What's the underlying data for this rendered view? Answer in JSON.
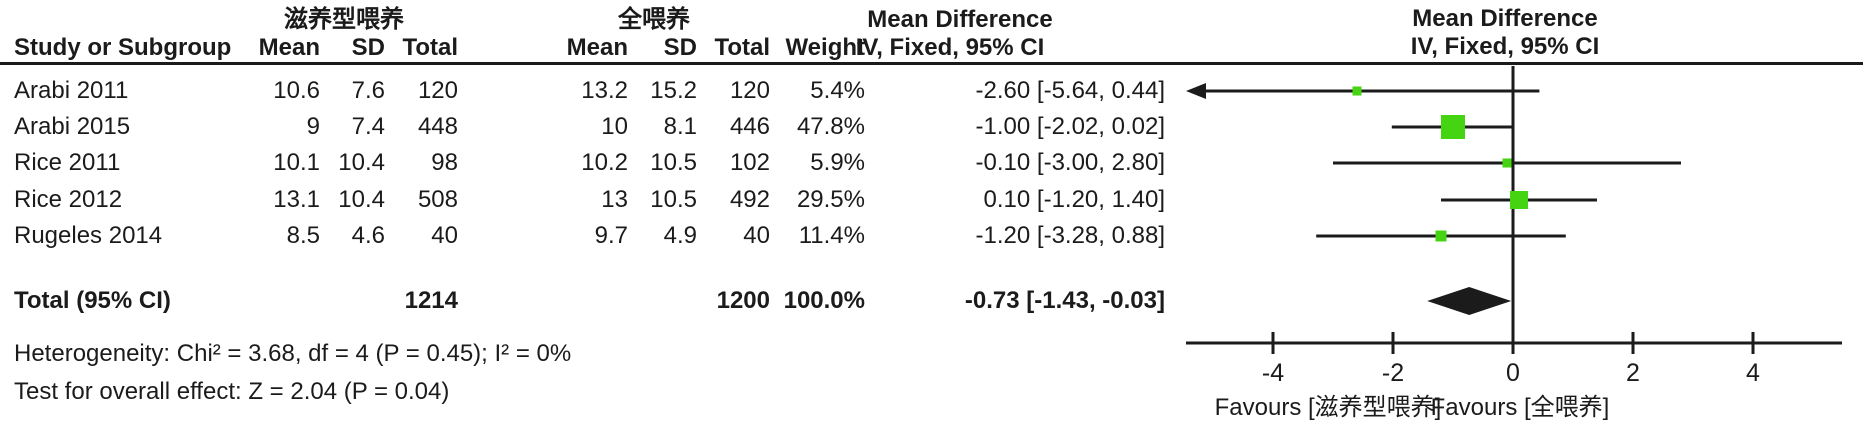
{
  "table": {
    "group1_label": "滋养型喂养",
    "group2_label": "全喂养",
    "md_header": "Mean Difference",
    "col_headers": {
      "study": "Study or Subgroup",
      "mean": "Mean",
      "sd": "SD",
      "total": "Total",
      "weight": "Weight",
      "ci": "IV, Fixed, 95% CI"
    },
    "rows": [
      {
        "study": "Arabi 2011",
        "mean1": "10.6",
        "sd1": "7.6",
        "total1": "120",
        "mean2": "13.2",
        "sd2": "15.2",
        "total2": "120",
        "weight": "5.4%",
        "ci": "-2.60 [-5.64, 0.44]"
      },
      {
        "study": "Arabi 2015",
        "mean1": "9",
        "sd1": "7.4",
        "total1": "448",
        "mean2": "10",
        "sd2": "8.1",
        "total2": "446",
        "weight": "47.8%",
        "ci": "-1.00 [-2.02, 0.02]"
      },
      {
        "study": "Rice 2011",
        "mean1": "10.1",
        "sd1": "10.4",
        "total1": "98",
        "mean2": "10.2",
        "sd2": "10.5",
        "total2": "102",
        "weight": "5.9%",
        "ci": "-0.10 [-3.00, 2.80]"
      },
      {
        "study": "Rice 2012",
        "mean1": "13.1",
        "sd1": "10.4",
        "total1": "508",
        "mean2": "13",
        "sd2": "10.5",
        "total2": "492",
        "weight": "29.5%",
        "ci": "0.10 [-1.20, 1.40]"
      },
      {
        "study": "Rugeles 2014",
        "mean1": "8.5",
        "sd1": "4.6",
        "total1": "40",
        "mean2": "9.7",
        "sd2": "4.9",
        "total2": "40",
        "weight": "11.4%",
        "ci": "-1.20 [-3.28, 0.88]"
      }
    ],
    "total_row": {
      "label": "Total (95% CI)",
      "total1": "1214",
      "total2": "1200",
      "weight": "100.0%",
      "ci": "-0.73 [-1.43, -0.03]"
    },
    "heterogeneity": "Heterogeneity: Chi² = 3.68, df = 4 (P = 0.45); I² = 0%",
    "overall_effect": "Test for overall effect: Z = 2.04 (P = 0.04)"
  },
  "chart_data": {
    "type": "scatter",
    "subtype": "forest-plot",
    "title": "Mean Difference",
    "subtitle": "IV, Fixed, 95% CI",
    "square_color": "#44d412",
    "line_color": "#1b1b1b",
    "x_axis": {
      "ticks": [
        -4,
        -2,
        0,
        2,
        4
      ],
      "min": -5.45,
      "max": 5.45,
      "label_left": "Favours [滋养型喂养]",
      "label_right": "Favours [全喂养]"
    },
    "studies": [
      {
        "name": "Arabi 2011",
        "md": -2.6,
        "ci": [
          -5.64,
          0.44
        ],
        "weight": 5.4,
        "offscale_left": true
      },
      {
        "name": "Arabi 2015",
        "md": -1.0,
        "ci": [
          -2.02,
          0.02
        ],
        "weight": 47.8,
        "offscale_left": false
      },
      {
        "name": "Rice 2011",
        "md": -0.1,
        "ci": [
          -3.0,
          2.8
        ],
        "weight": 5.9,
        "offscale_left": false
      },
      {
        "name": "Rice 2012",
        "md": 0.1,
        "ci": [
          -1.2,
          1.4
        ],
        "weight": 29.5,
        "offscale_left": false
      },
      {
        "name": "Rugeles 2014",
        "md": -1.2,
        "ci": [
          -3.28,
          0.88
        ],
        "weight": 11.4,
        "offscale_left": false
      }
    ],
    "total": {
      "name": "Total (95% CI)",
      "md": -0.73,
      "ci": [
        -1.43,
        -0.03
      ]
    }
  }
}
